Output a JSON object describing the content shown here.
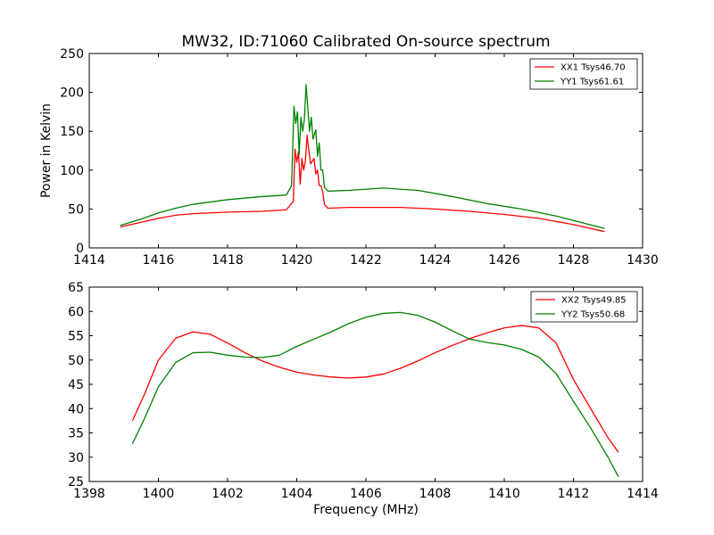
{
  "chart_data": [
    {
      "type": "line",
      "title": "MW32, ID:71060 Calibrated On-source spectrum",
      "xlabel": "",
      "ylabel": "Power in Kelvin",
      "xlim": [
        1414,
        1430
      ],
      "ylim": [
        0,
        250
      ],
      "xticks": [
        1414,
        1416,
        1418,
        1420,
        1422,
        1424,
        1426,
        1428,
        1430
      ],
      "yticks": [
        0,
        50,
        100,
        150,
        200,
        250
      ],
      "grid": false,
      "legend_position": "top-right",
      "series": [
        {
          "name": "XX1 Tsys46.70",
          "color": "#ff0000",
          "x": [
            1414.9,
            1415.5,
            1416,
            1416.5,
            1417,
            1418,
            1419,
            1419.7,
            1419.9,
            1419.95,
            1420.0,
            1420.05,
            1420.1,
            1420.15,
            1420.2,
            1420.25,
            1420.3,
            1420.35,
            1420.4,
            1420.5,
            1420.55,
            1420.6,
            1420.65,
            1420.7,
            1420.75,
            1420.8,
            1420.9,
            1421.5,
            1422,
            1423,
            1424,
            1425,
            1426,
            1427,
            1428,
            1428.9
          ],
          "y": [
            27,
            33,
            38,
            42,
            44,
            46,
            47,
            49,
            60,
            127,
            110,
            124,
            82,
            115,
            100,
            112,
            145,
            125,
            108,
            115,
            95,
            100,
            80,
            80,
            72,
            56,
            51,
            52,
            52,
            52,
            50,
            47,
            43,
            38,
            30,
            21
          ]
        },
        {
          "name": "YY1 Tsys61.61",
          "color": "#008000",
          "x": [
            1414.9,
            1415.5,
            1416,
            1416.5,
            1417,
            1418,
            1419,
            1419.7,
            1419.85,
            1419.92,
            1419.97,
            1420.02,
            1420.07,
            1420.12,
            1420.17,
            1420.22,
            1420.27,
            1420.32,
            1420.37,
            1420.42,
            1420.47,
            1420.55,
            1420.6,
            1420.65,
            1420.7,
            1420.75,
            1420.8,
            1420.9,
            1421.5,
            1422.5,
            1423.5,
            1424.5,
            1425.5,
            1426.5,
            1427.5,
            1428.9
          ],
          "y": [
            29,
            37,
            45,
            51,
            56,
            62,
            66,
            68,
            80,
            182,
            160,
            175,
            120,
            168,
            150,
            165,
            210,
            180,
            150,
            168,
            140,
            152,
            118,
            135,
            100,
            100,
            78,
            73,
            74,
            77,
            74,
            66,
            57,
            50,
            41,
            25
          ]
        }
      ]
    },
    {
      "type": "line",
      "title": "",
      "xlabel": "Frequency (MHz)",
      "ylabel": "",
      "xlim": [
        1398,
        1414
      ],
      "ylim": [
        25,
        65
      ],
      "xticks": [
        1398,
        1400,
        1402,
        1404,
        1406,
        1408,
        1410,
        1412,
        1414
      ],
      "yticks": [
        25,
        30,
        35,
        40,
        45,
        50,
        55,
        60,
        65
      ],
      "grid": false,
      "legend_position": "top-right",
      "series": [
        {
          "name": "XX2 Tsys49.85",
          "color": "#ff0000",
          "x": [
            1399.25,
            1399.6,
            1400.0,
            1400.5,
            1401.0,
            1401.5,
            1402.0,
            1402.5,
            1403.0,
            1403.5,
            1404.0,
            1404.5,
            1405.0,
            1405.5,
            1406.0,
            1406.5,
            1407.0,
            1407.5,
            1408.0,
            1408.5,
            1409.0,
            1409.5,
            1410.0,
            1410.5,
            1411.0,
            1411.5,
            1412.0,
            1412.5,
            1413.0,
            1413.3
          ],
          "y": [
            37.5,
            43.0,
            50.0,
            54.5,
            55.8,
            55.3,
            53.5,
            51.5,
            49.8,
            48.5,
            47.5,
            46.9,
            46.5,
            46.3,
            46.5,
            47.1,
            48.3,
            49.8,
            51.5,
            53.0,
            54.4,
            55.6,
            56.6,
            57.1,
            56.6,
            53.5,
            46.0,
            40.0,
            34.0,
            31.0
          ]
        },
        {
          "name": "YY2 Tsys50.68",
          "color": "#008000",
          "x": [
            1399.25,
            1399.6,
            1400.0,
            1400.5,
            1401.0,
            1401.5,
            1402.0,
            1402.5,
            1403.0,
            1403.5,
            1404.0,
            1404.5,
            1405.0,
            1405.5,
            1406.0,
            1406.5,
            1407.0,
            1407.5,
            1408.0,
            1408.5,
            1409.0,
            1409.5,
            1410.0,
            1410.5,
            1411.0,
            1411.5,
            1412.0,
            1412.5,
            1413.0,
            1413.3
          ],
          "y": [
            32.8,
            38.0,
            44.5,
            49.5,
            51.5,
            51.6,
            51.0,
            50.6,
            50.5,
            51.0,
            52.8,
            54.3,
            55.8,
            57.5,
            58.8,
            59.6,
            59.8,
            59.2,
            57.8,
            56.0,
            54.3,
            53.6,
            53.1,
            52.2,
            50.6,
            47.2,
            41.5,
            36.0,
            30.0,
            26.0
          ]
        }
      ]
    }
  ]
}
